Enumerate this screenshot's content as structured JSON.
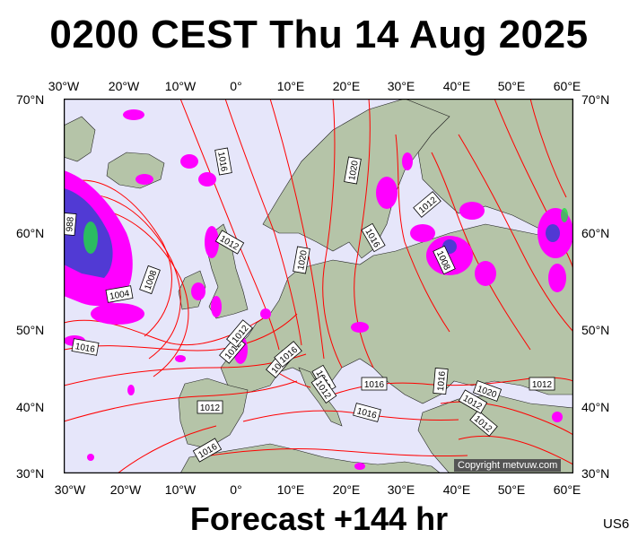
{
  "title": "0200 CEST Thu 14 Aug 2025",
  "footer": "Forecast +144 hr",
  "model_tag": "US6",
  "copyright": "Copyright metvuw.com",
  "lon_labels": [
    "30°W",
    "20°W",
    "10°W",
    "0°",
    "10°E",
    "20°E",
    "30°E",
    "40°E",
    "50°E",
    "60°E"
  ],
  "lat_labels": [
    "70°N",
    "60°N",
    "50°N",
    "40°N",
    "30°N"
  ],
  "isobar_labels": [
    "1016",
    "1012",
    "1020",
    "1016",
    "1012",
    "1012",
    "1008",
    "1004",
    "1008",
    "1016",
    "988",
    "1020",
    "1016",
    "1016",
    "1012",
    "1012",
    "1016",
    "1016",
    "1012",
    "1012",
    "1020",
    "1016",
    "1012",
    "1012",
    "1016",
    "1016"
  ],
  "colors": {
    "sea": "#e6e6fa",
    "land": "#b5c4a8",
    "isobar": "#ff0000",
    "precip": "#ff00ff",
    "precip_heavy": "#3344cc"
  }
}
